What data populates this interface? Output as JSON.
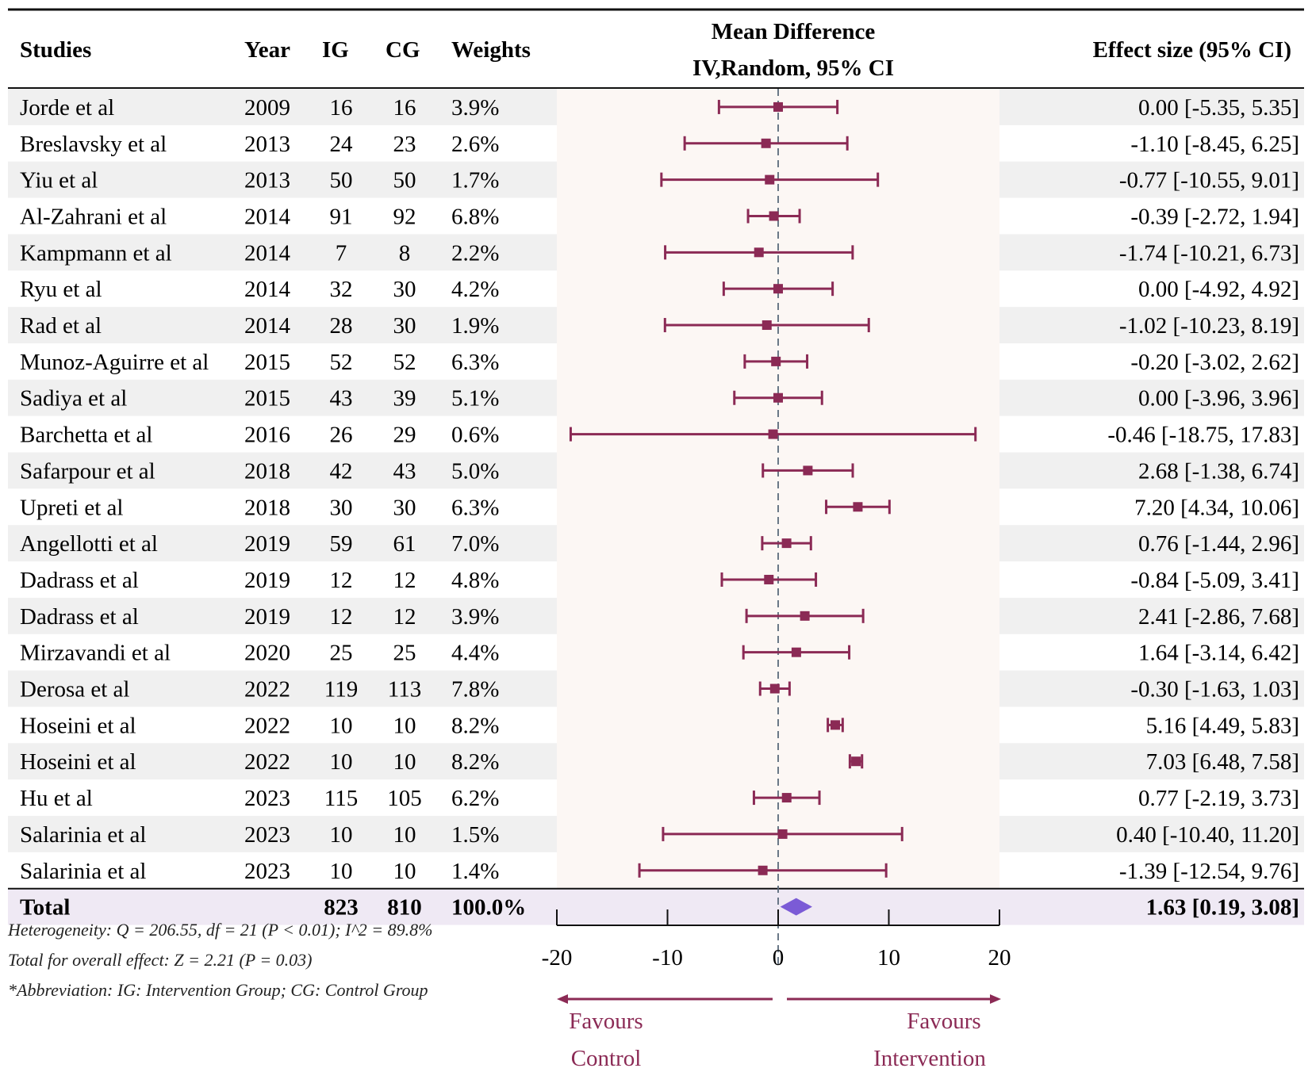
{
  "headers": {
    "studies": "Studies",
    "year": "Year",
    "ig": "IG",
    "cg": "CG",
    "weights": "Weights",
    "md_line1": "Mean Difference",
    "md_line2": "IV,Random, 95% CI",
    "effect": "Effect size (95% CI)"
  },
  "total": {
    "label": "Total",
    "ig": "823",
    "cg": "810",
    "weight": "100.0%",
    "effect_text": "1.63 [0.19, 3.08]"
  },
  "footnotes": {
    "heterogeneity": "Heterogeneity: Q = 206.55, df = 21 (P < 0.01); I^2 = 89.8%",
    "overall": "Total for overall effect: Z = 2.21 (P = 0.03)",
    "abbrev": "*Abbreviation: IG: Intervention Group; CG: Control Group"
  },
  "favours": {
    "left_line1": "Favours",
    "left_line2": "Control",
    "right_line1": "Favours",
    "right_line2": "Intervention"
  },
  "colors": {
    "marker": "#8b2a55",
    "diamond": "#7b5bd6",
    "row_shade": "#f0f0f0",
    "plot_bg": "#fcf7f4",
    "total_bg": "#efe9f4"
  },
  "chart_data": {
    "type": "forest",
    "title": "Mean Difference IV,Random, 95% CI",
    "xlabel": "",
    "xlim": [
      -20,
      20
    ],
    "xticks": [
      -20,
      -10,
      0,
      10,
      20
    ],
    "reference_line": 0,
    "studies": [
      {
        "name": "Jorde et al",
        "year": "2009",
        "ig": "16",
        "cg": "16",
        "weight": "3.9%",
        "md": 0.0,
        "lo": -5.35,
        "hi": 5.35,
        "text": "0.00 [-5.35, 5.35]"
      },
      {
        "name": "Breslavsky et al",
        "year": "2013",
        "ig": "24",
        "cg": "23",
        "weight": "2.6%",
        "md": -1.1,
        "lo": -8.45,
        "hi": 6.25,
        "text": "-1.10 [-8.45, 6.25]"
      },
      {
        "name": "Yiu et al",
        "year": "2013",
        "ig": "50",
        "cg": "50",
        "weight": "1.7%",
        "md": -0.77,
        "lo": -10.55,
        "hi": 9.01,
        "text": "-0.77 [-10.55, 9.01]"
      },
      {
        "name": "Al-Zahrani et al",
        "year": "2014",
        "ig": "91",
        "cg": "92",
        "weight": "6.8%",
        "md": -0.39,
        "lo": -2.72,
        "hi": 1.94,
        "text": "-0.39 [-2.72, 1.94]"
      },
      {
        "name": "Kampmann et al",
        "year": "2014",
        "ig": "7",
        "cg": "8",
        "weight": "2.2%",
        "md": -1.74,
        "lo": -10.21,
        "hi": 6.73,
        "text": "-1.74 [-10.21, 6.73]"
      },
      {
        "name": "Ryu et al",
        "year": "2014",
        "ig": "32",
        "cg": "30",
        "weight": "4.2%",
        "md": 0.0,
        "lo": -4.92,
        "hi": 4.92,
        "text": "0.00 [-4.92, 4.92]"
      },
      {
        "name": "Rad et al",
        "year": "2014",
        "ig": "28",
        "cg": "30",
        "weight": "1.9%",
        "md": -1.02,
        "lo": -10.23,
        "hi": 8.19,
        "text": "-1.02 [-10.23, 8.19]"
      },
      {
        "name": "Munoz-Aguirre et al",
        "year": "2015",
        "ig": "52",
        "cg": "52",
        "weight": "6.3%",
        "md": -0.2,
        "lo": -3.02,
        "hi": 2.62,
        "text": "-0.20 [-3.02, 2.62]"
      },
      {
        "name": "Sadiya et al",
        "year": "2015",
        "ig": "43",
        "cg": "39",
        "weight": "5.1%",
        "md": 0.0,
        "lo": -3.96,
        "hi": 3.96,
        "text": "0.00 [-3.96, 3.96]"
      },
      {
        "name": "Barchetta et al",
        "year": "2016",
        "ig": "26",
        "cg": "29",
        "weight": "0.6%",
        "md": -0.46,
        "lo": -18.75,
        "hi": 17.83,
        "text": "-0.46 [-18.75, 17.83]"
      },
      {
        "name": "Safarpour et al",
        "year": "2018",
        "ig": "42",
        "cg": "43",
        "weight": "5.0%",
        "md": 2.68,
        "lo": -1.38,
        "hi": 6.74,
        "text": "2.68 [-1.38, 6.74]"
      },
      {
        "name": "Upreti et al",
        "year": "2018",
        "ig": "30",
        "cg": "30",
        "weight": "6.3%",
        "md": 7.2,
        "lo": 4.34,
        "hi": 10.06,
        "text": "7.20 [4.34, 10.06]"
      },
      {
        "name": "Angellotti et al",
        "year": "2019",
        "ig": "59",
        "cg": "61",
        "weight": "7.0%",
        "md": 0.76,
        "lo": -1.44,
        "hi": 2.96,
        "text": "0.76 [-1.44, 2.96]"
      },
      {
        "name": "Dadrass et al",
        "year": "2019",
        "ig": "12",
        "cg": "12",
        "weight": "4.8%",
        "md": -0.84,
        "lo": -5.09,
        "hi": 3.41,
        "text": "-0.84 [-5.09, 3.41]"
      },
      {
        "name": "Dadrass et al",
        "year": "2019",
        "ig": "12",
        "cg": "12",
        "weight": "3.9%",
        "md": 2.41,
        "lo": -2.86,
        "hi": 7.68,
        "text": "2.41 [-2.86, 7.68]"
      },
      {
        "name": "Mirzavandi et al",
        "year": "2020",
        "ig": "25",
        "cg": "25",
        "weight": "4.4%",
        "md": 1.64,
        "lo": -3.14,
        "hi": 6.42,
        "text": "1.64 [-3.14, 6.42]"
      },
      {
        "name": "Derosa et al",
        "year": "2022",
        "ig": "119",
        "cg": "113",
        "weight": "7.8%",
        "md": -0.3,
        "lo": -1.63,
        "hi": 1.03,
        "text": "-0.30 [-1.63, 1.03]"
      },
      {
        "name": "Hoseini et al",
        "year": "2022",
        "ig": "10",
        "cg": "10",
        "weight": "8.2%",
        "md": 5.16,
        "lo": 4.49,
        "hi": 5.83,
        "text": "5.16 [4.49, 5.83]"
      },
      {
        "name": "Hoseini et al",
        "year": "2022",
        "ig": "10",
        "cg": "10",
        "weight": "8.2%",
        "md": 7.03,
        "lo": 6.48,
        "hi": 7.58,
        "text": "7.03 [6.48, 7.58]"
      },
      {
        "name": "Hu et al",
        "year": "2023",
        "ig": "115",
        "cg": "105",
        "weight": "6.2%",
        "md": 0.77,
        "lo": -2.19,
        "hi": 3.73,
        "text": "0.77 [-2.19, 3.73]"
      },
      {
        "name": "Salarinia et al",
        "year": "2023",
        "ig": "10",
        "cg": "10",
        "weight": "1.5%",
        "md": 0.4,
        "lo": -10.4,
        "hi": 11.2,
        "text": "0.40 [-10.40, 11.20]"
      },
      {
        "name": "Salarinia et al",
        "year": "2023",
        "ig": "10",
        "cg": "10",
        "weight": "1.4%",
        "md": -1.39,
        "lo": -12.54,
        "hi": 9.76,
        "text": "-1.39 [-12.54, 9.76]"
      }
    ],
    "pooled": {
      "md": 1.63,
      "lo": 0.19,
      "hi": 3.08
    }
  }
}
